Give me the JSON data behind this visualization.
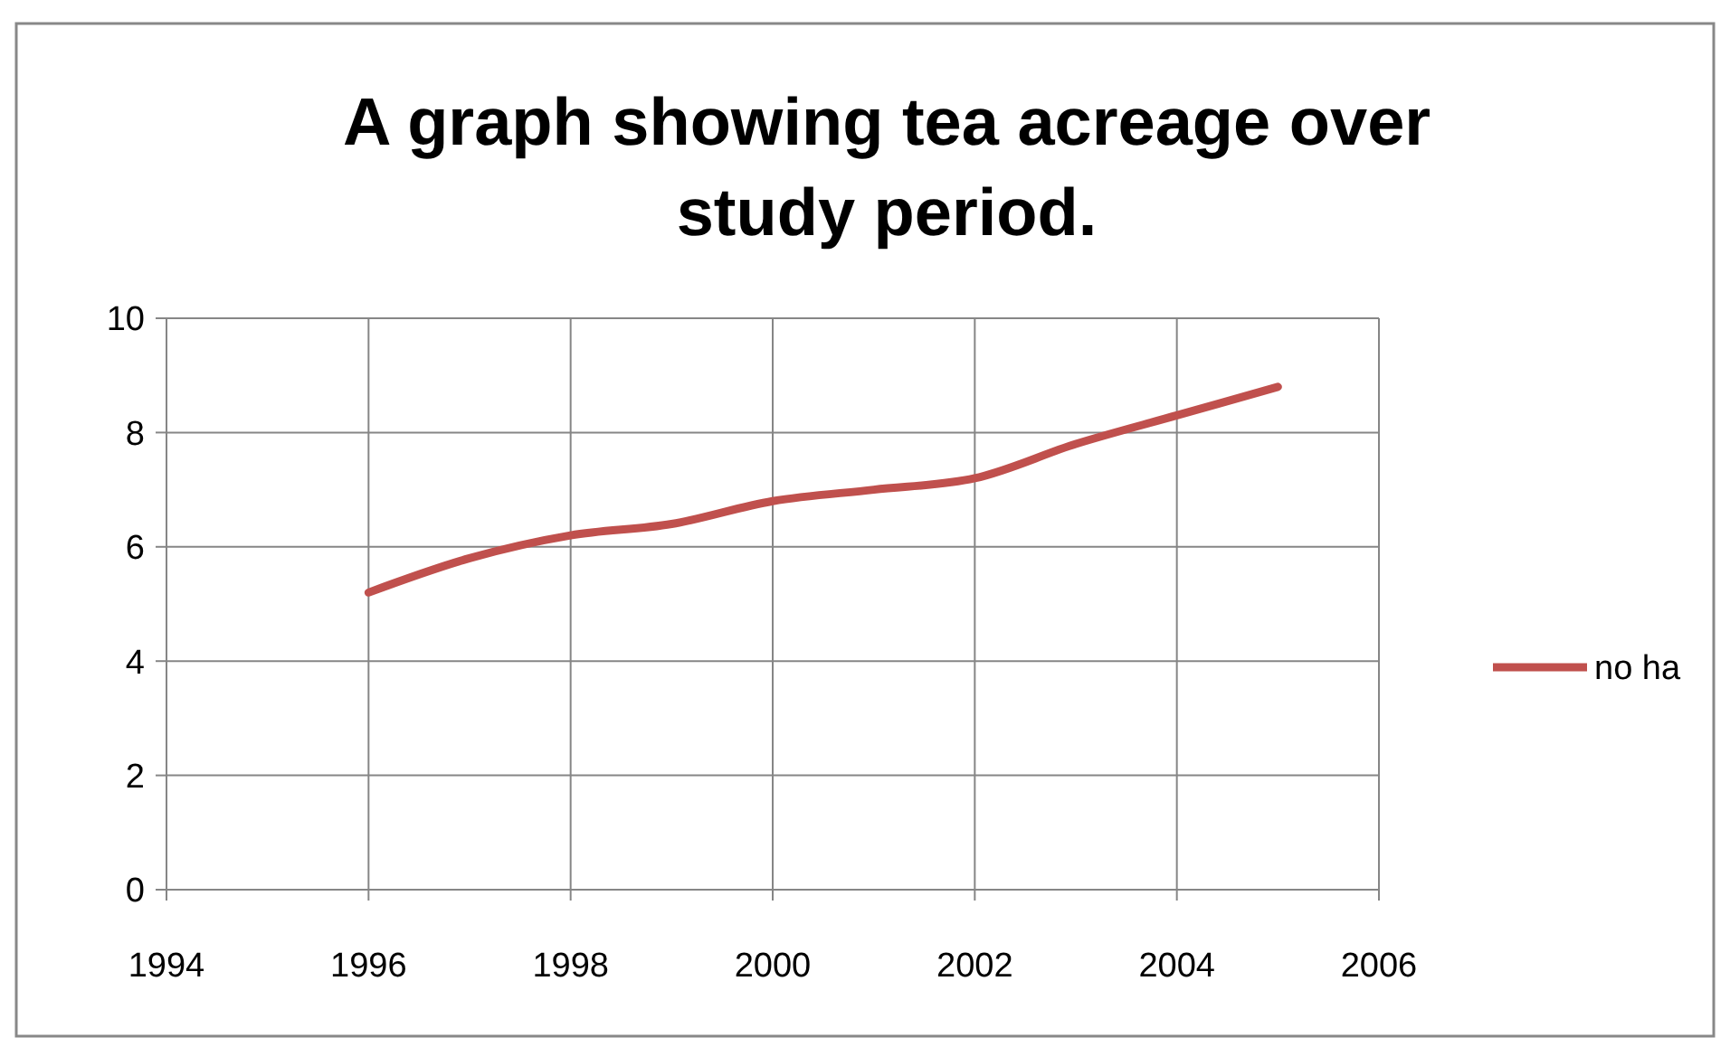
{
  "chart_data": {
    "type": "line",
    "title": "A graph showing tea acreage over study period.",
    "x": [
      1996,
      1997,
      1998,
      1999,
      2000,
      2001,
      2002,
      2003,
      2004,
      2005
    ],
    "series": [
      {
        "name": "no ha",
        "color": "#c0504d",
        "values": [
          5.2,
          5.8,
          6.2,
          6.4,
          6.8,
          7.0,
          7.2,
          7.8,
          8.3,
          8.8
        ]
      }
    ],
    "xlim": [
      1994,
      2006
    ],
    "xticks": [
      1994,
      1996,
      1998,
      2000,
      2002,
      2004,
      2006
    ],
    "ylim": [
      0,
      10
    ],
    "yticks": [
      0,
      2,
      4,
      6,
      8,
      10
    ],
    "grid": true,
    "legend": "right",
    "marker": "none",
    "line_style": "solid"
  }
}
